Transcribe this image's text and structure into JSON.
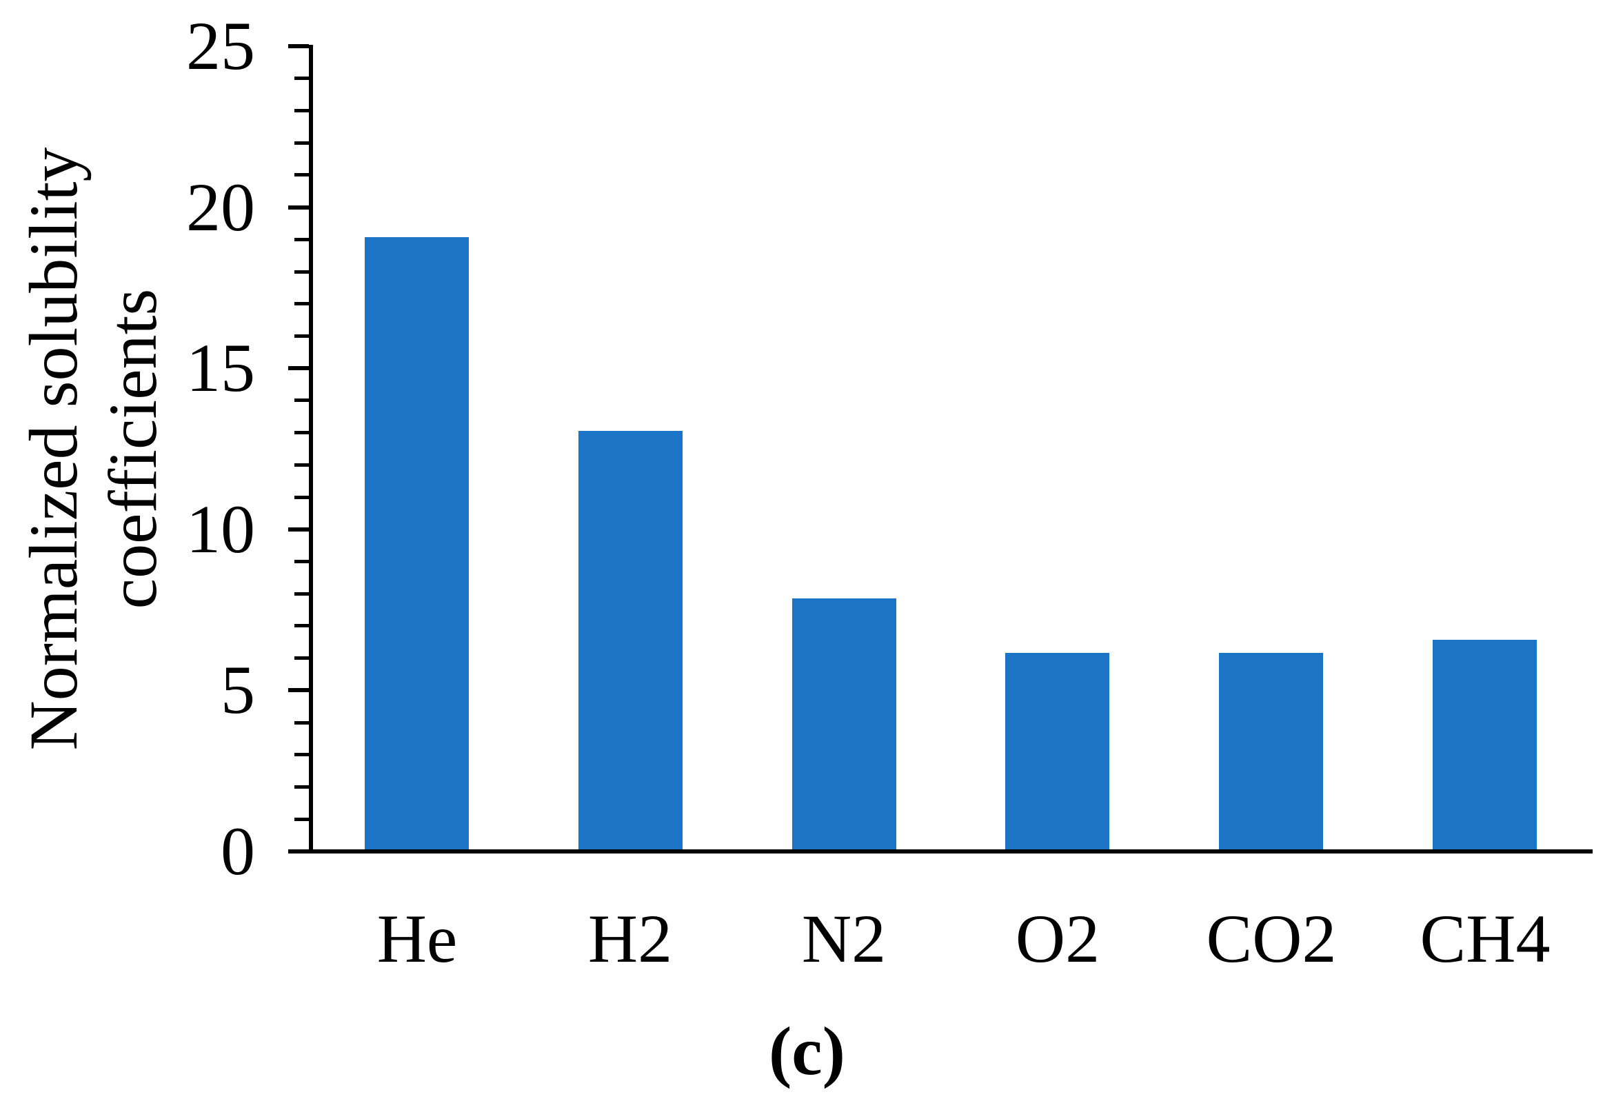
{
  "figure": {
    "caption": "(c)"
  },
  "chart_data": {
    "type": "bar",
    "categories": [
      "He",
      "H2",
      "N2",
      "O2",
      "CO2",
      "CH4"
    ],
    "values": [
      19.0,
      13.0,
      7.8,
      6.1,
      6.1,
      6.5
    ],
    "title": "",
    "xlabel": "",
    "ylabel": "Normalized solubility coefficients",
    "ylabel_lines": [
      "Normalized solubility",
      "coefficients"
    ],
    "ylim": [
      0,
      25
    ],
    "yticks": [
      0,
      5,
      10,
      15,
      20,
      25
    ],
    "minor_tick_step": 1,
    "grid": false,
    "legend": false,
    "bar_color": "#1B74C5",
    "axis_color": "#000000",
    "text_color": "#000000",
    "background_color": "#FFFFFF",
    "caption": "(c)"
  }
}
